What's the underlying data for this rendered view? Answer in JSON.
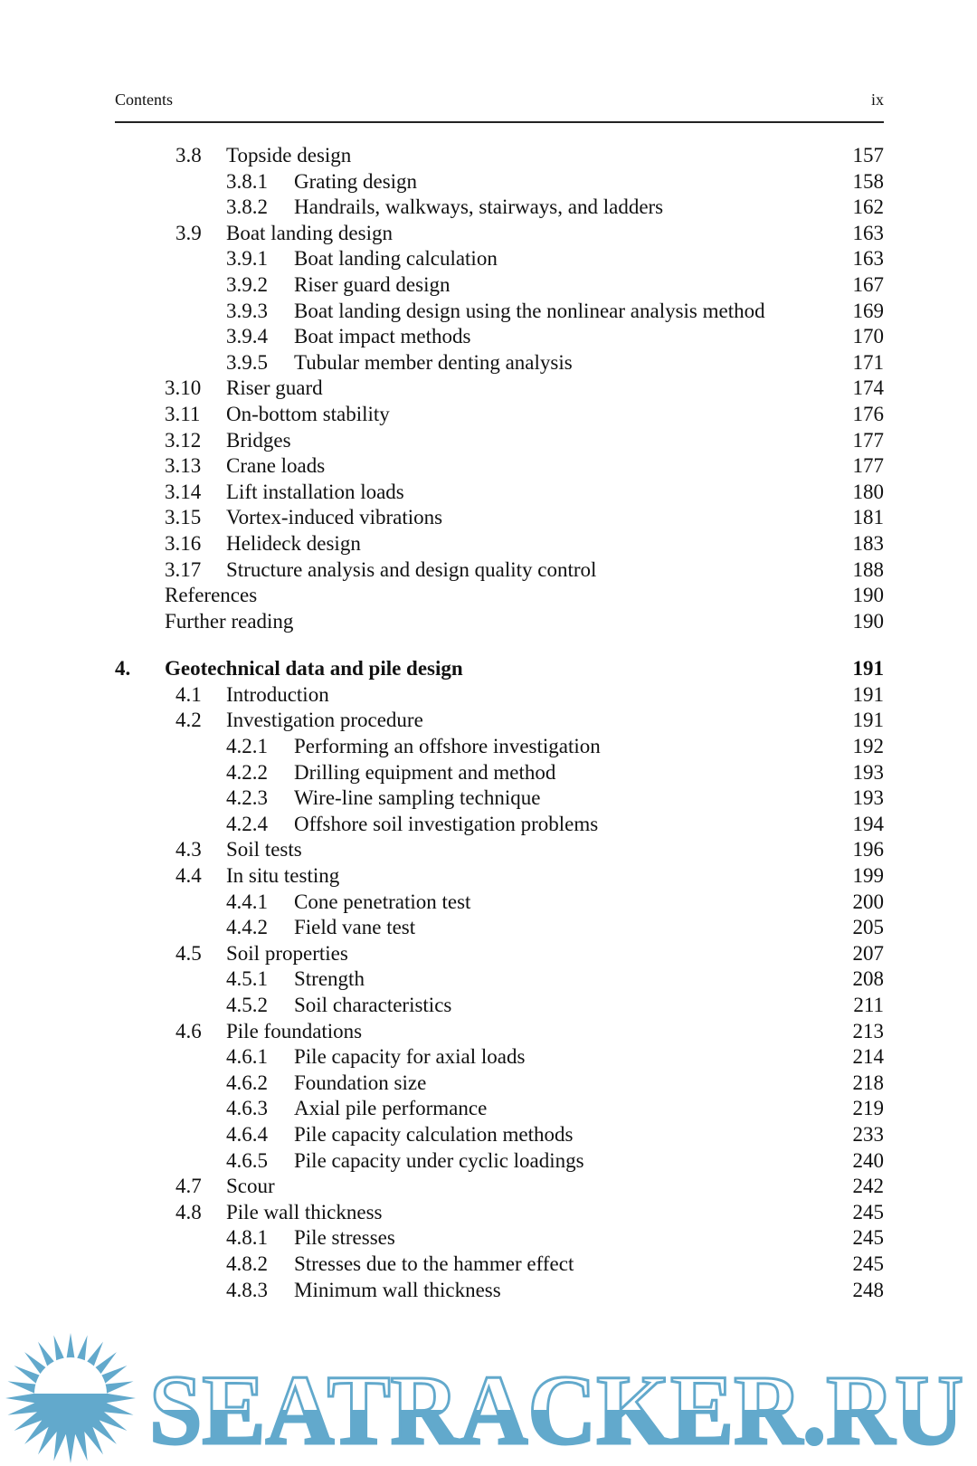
{
  "header": {
    "left": "Contents",
    "right": "ix"
  },
  "entries": [
    {
      "level": 1,
      "num": "3.8",
      "title": "Topside design",
      "page": "157"
    },
    {
      "level": 2,
      "num": "3.8.1",
      "title": "Grating design",
      "page": "158"
    },
    {
      "level": 2,
      "num": "3.8.2",
      "title": "Handrails, walkways, stairways, and ladders",
      "page": "162"
    },
    {
      "level": 1,
      "num": "3.9",
      "title": "Boat landing design",
      "page": "163"
    },
    {
      "level": 2,
      "num": "3.9.1",
      "title": "Boat landing calculation",
      "page": "163"
    },
    {
      "level": 2,
      "num": "3.9.2",
      "title": "Riser guard design",
      "page": "167"
    },
    {
      "level": 2,
      "num": "3.9.3",
      "title": "Boat landing design using the nonlinear analysis method",
      "page": "169"
    },
    {
      "level": 2,
      "num": "3.9.4",
      "title": "Boat impact methods",
      "page": "170"
    },
    {
      "level": 2,
      "num": "3.9.5",
      "title": "Tubular member denting analysis",
      "page": "171"
    },
    {
      "level": 1,
      "num": "3.10",
      "title": "Riser guard",
      "page": "174"
    },
    {
      "level": 1,
      "num": "3.11",
      "title": "On-bottom stability",
      "page": "176"
    },
    {
      "level": 1,
      "num": "3.12",
      "title": "Bridges",
      "page": "177"
    },
    {
      "level": 1,
      "num": "3.13",
      "title": "Crane loads",
      "page": "177"
    },
    {
      "level": 1,
      "num": "3.14",
      "title": "Lift installation loads",
      "page": "180"
    },
    {
      "level": 1,
      "num": "3.15",
      "title": "Vortex-induced vibrations",
      "page": "181"
    },
    {
      "level": 1,
      "num": "3.16",
      "title": "Helideck design",
      "page": "183"
    },
    {
      "level": 1,
      "num": "3.17",
      "title": "Structure analysis and design quality control",
      "page": "188"
    },
    {
      "level": "plain",
      "num": "",
      "title": "References",
      "page": "190"
    },
    {
      "level": "plain",
      "num": "",
      "title": "Further reading",
      "page": "190"
    },
    {
      "level": 0,
      "num": "4.",
      "title": "Geotechnical data and pile design",
      "page": "191",
      "bold": true
    },
    {
      "level": 1,
      "num": "4.1",
      "title": "Introduction",
      "page": "191"
    },
    {
      "level": 1,
      "num": "4.2",
      "title": "Investigation procedure",
      "page": "191"
    },
    {
      "level": 2,
      "num": "4.2.1",
      "title": "Performing an offshore investigation",
      "page": "192"
    },
    {
      "level": 2,
      "num": "4.2.2",
      "title": "Drilling equipment and method",
      "page": "193"
    },
    {
      "level": 2,
      "num": "4.2.3",
      "title": "Wire-line sampling technique",
      "page": "193"
    },
    {
      "level": 2,
      "num": "4.2.4",
      "title": "Offshore soil investigation problems",
      "page": "194"
    },
    {
      "level": 1,
      "num": "4.3",
      "title": "Soil tests",
      "page": "196"
    },
    {
      "level": 1,
      "num": "4.4",
      "title": "In situ testing",
      "page": "199"
    },
    {
      "level": 2,
      "num": "4.4.1",
      "title": "Cone penetration test",
      "page": "200"
    },
    {
      "level": 2,
      "num": "4.4.2",
      "title": "Field vane test",
      "page": "205"
    },
    {
      "level": 1,
      "num": "4.5",
      "title": "Soil properties",
      "page": "207"
    },
    {
      "level": 2,
      "num": "4.5.1",
      "title": "Strength",
      "page": "208"
    },
    {
      "level": 2,
      "num": "4.5.2",
      "title": "Soil characteristics",
      "page": "211"
    },
    {
      "level": 1,
      "num": "4.6",
      "title": "Pile foundations",
      "page": "213"
    },
    {
      "level": 2,
      "num": "4.6.1",
      "title": "Pile capacity for axial loads",
      "page": "214"
    },
    {
      "level": 2,
      "num": "4.6.2",
      "title": "Foundation size",
      "page": "218"
    },
    {
      "level": 2,
      "num": "4.6.3",
      "title": "Axial pile performance",
      "page": "219"
    },
    {
      "level": 2,
      "num": "4.6.4",
      "title": "Pile capacity calculation methods",
      "page": "233"
    },
    {
      "level": 2,
      "num": "4.6.5",
      "title": "Pile capacity under cyclic loadings",
      "page": "240"
    },
    {
      "level": 1,
      "num": "4.7",
      "title": "Scour",
      "page": "242"
    },
    {
      "level": 1,
      "num": "4.8",
      "title": "Pile wall thickness",
      "page": "245"
    },
    {
      "level": 2,
      "num": "4.8.1",
      "title": "Pile stresses",
      "page": "245"
    },
    {
      "level": 2,
      "num": "4.8.2",
      "title": "Stresses due to the hammer effect",
      "page": "245"
    },
    {
      "level": 2,
      "num": "4.8.3",
      "title": "Minimum wall thickness",
      "page": "248"
    }
  ],
  "watermark": {
    "text": "SEATRACKER.RU",
    "color": "#62a9cc",
    "icon": "sun-over-water-icon"
  }
}
